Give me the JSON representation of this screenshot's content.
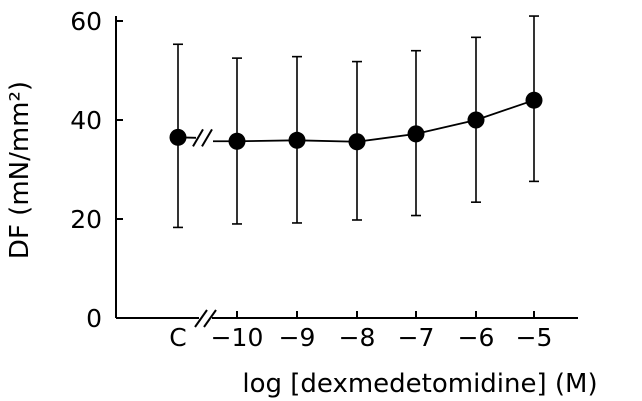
{
  "chart_data": {
    "type": "scatter",
    "title": "",
    "xlabel": "log [dexmedetomidine] (M)",
    "ylabel": "DF (mN/mm²)",
    "ylim": [
      0,
      60
    ],
    "y_ticks": [
      "0",
      "20",
      "40",
      "60"
    ],
    "x_ticks": [
      "C",
      "−10",
      "−9",
      "−8",
      "−7",
      "−6",
      "−5"
    ],
    "axis_break": "between C and −10",
    "grid": false,
    "legend": "none",
    "connected": "−10 through −5",
    "points": [
      {
        "x": "C",
        "y": 36.5,
        "err_low": 18.3,
        "err_high": 55.3
      },
      {
        "x": "−10",
        "y": 35.7,
        "err_low": 19.0,
        "err_high": 52.5
      },
      {
        "x": "−9",
        "y": 35.9,
        "err_low": 19.2,
        "err_high": 52.8
      },
      {
        "x": "−8",
        "y": 35.6,
        "err_low": 19.8,
        "err_high": 51.8
      },
      {
        "x": "−7",
        "y": 37.2,
        "err_low": 20.7,
        "err_high": 54.0
      },
      {
        "x": "−6",
        "y": 40.0,
        "err_low": 23.4,
        "err_high": 56.7
      },
      {
        "x": "−5",
        "y": 44.0,
        "err_low": 27.6,
        "err_high": 61.0
      }
    ],
    "colors": {
      "marker": "#000000",
      "line": "#000000"
    }
  }
}
